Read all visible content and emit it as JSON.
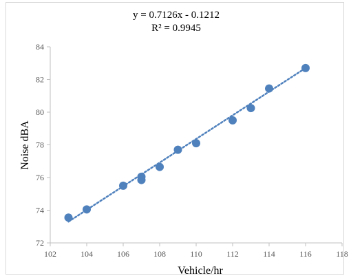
{
  "chart_data": {
    "type": "scatter",
    "title_lines": [
      "y = 0.7126x - 0.1212",
      "R² = 0.9945"
    ],
    "xlabel": "Vehicle/hr",
    "ylabel": "Noise dBA",
    "xlim": [
      102,
      118
    ],
    "ylim": [
      72,
      84
    ],
    "x_ticks": [
      102,
      104,
      106,
      108,
      110,
      112,
      114,
      116,
      118
    ],
    "y_ticks": [
      72,
      74,
      76,
      78,
      80,
      82,
      84
    ],
    "grid": false,
    "series": [
      {
        "points": [
          {
            "x": 103,
            "y": 73.55
          },
          {
            "x": 104,
            "y": 74.05
          },
          {
            "x": 106,
            "y": 75.5
          },
          {
            "x": 107,
            "y": 76.05
          },
          {
            "x": 107,
            "y": 75.85
          },
          {
            "x": 108,
            "y": 76.65
          },
          {
            "x": 109,
            "y": 77.7
          },
          {
            "x": 110,
            "y": 78.1
          },
          {
            "x": 112,
            "y": 79.5
          },
          {
            "x": 113,
            "y": 80.25
          },
          {
            "x": 114,
            "y": 81.45
          },
          {
            "x": 116,
            "y": 82.7
          }
        ],
        "color": "#4f81bd"
      }
    ],
    "trendline": {
      "type": "linear",
      "from": {
        "x": 103,
        "y": 73.3
      },
      "to": {
        "x": 116,
        "y": 82.7
      },
      "style": "dotted",
      "color": "#4f81bd"
    }
  }
}
